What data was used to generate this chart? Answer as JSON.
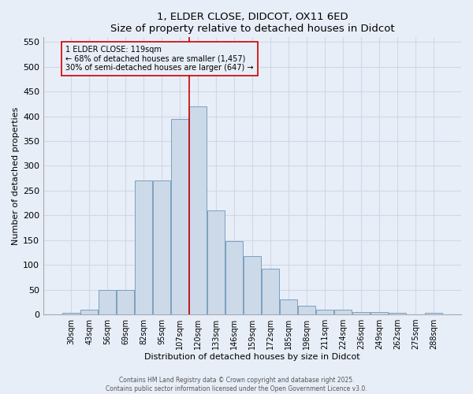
{
  "title": "1, ELDER CLOSE, DIDCOT, OX11 6ED",
  "subtitle": "Size of property relative to detached houses in Didcot",
  "xlabel": "Distribution of detached houses by size in Didcot",
  "ylabel": "Number of detached properties",
  "categories": [
    "30sqm",
    "43sqm",
    "56sqm",
    "69sqm",
    "82sqm",
    "95sqm",
    "107sqm",
    "120sqm",
    "133sqm",
    "146sqm",
    "159sqm",
    "172sqm",
    "185sqm",
    "198sqm",
    "211sqm",
    "224sqm",
    "236sqm",
    "249sqm",
    "262sqm",
    "275sqm",
    "288sqm"
  ],
  "values": [
    3,
    10,
    50,
    50,
    270,
    270,
    395,
    420,
    210,
    148,
    118,
    92,
    30,
    18,
    10,
    10,
    5,
    5,
    3,
    0,
    3
  ],
  "bar_color": "#ccd9e8",
  "bar_edge_color": "#7aa0c0",
  "background_color": "#e8eef8",
  "grid_color": "#d0d8e8",
  "red_line_index": 7,
  "red_line_color": "#cc0000",
  "annotation_text": "1 ELDER CLOSE: 119sqm\n← 68% of detached houses are smaller (1,457)\n30% of semi-detached houses are larger (647) →",
  "annotation_box_edge": "#cc0000",
  "ylim": [
    0,
    560
  ],
  "yticks": [
    0,
    50,
    100,
    150,
    200,
    250,
    300,
    350,
    400,
    450,
    500,
    550
  ],
  "footer1": "Contains HM Land Registry data © Crown copyright and database right 2025.",
  "footer2": "Contains public sector information licensed under the Open Government Licence v3.0."
}
